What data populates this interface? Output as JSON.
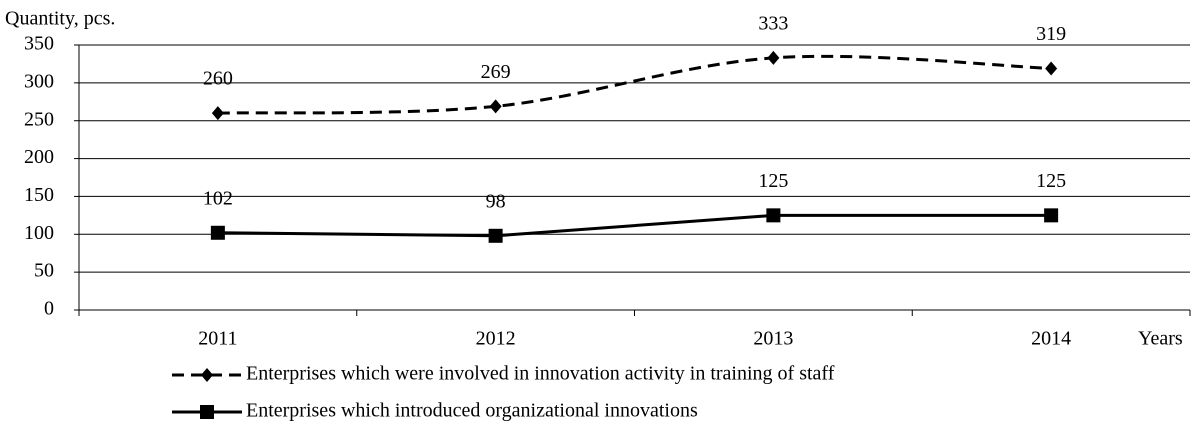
{
  "chart_data": {
    "type": "line",
    "y_axis_label": "Quantity, pcs.",
    "x_axis_label": "Years",
    "categories": [
      "2011",
      "2012",
      "2013",
      "2014"
    ],
    "series": [
      {
        "name": "Enterprises which were involved in  innovation activity in training of staff",
        "color": "#000000",
        "dashed": true,
        "smooth": true,
        "marker": "diamond",
        "values": [
          260,
          269,
          333,
          319
        ]
      },
      {
        "name": "Enterprises which introduced organizational innovations",
        "color": "#000000",
        "dashed": false,
        "smooth": false,
        "marker": "square",
        "values": [
          102,
          98,
          125,
          125
        ]
      }
    ],
    "ylim": [
      0,
      350
    ],
    "yticks": [
      0,
      50,
      100,
      150,
      200,
      250,
      300,
      350
    ],
    "grid": true
  }
}
